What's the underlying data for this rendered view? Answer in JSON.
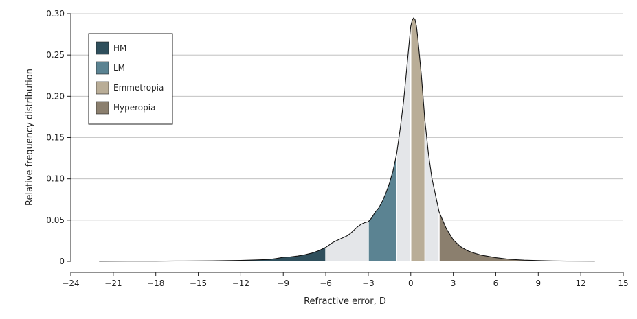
{
  "chart_data": {
    "type": "area",
    "xlabel": "Refractive error, D",
    "ylabel": "Relative frequency distribution",
    "xlim": [
      -24,
      15
    ],
    "ylim": [
      0,
      0.3
    ],
    "x_ticks": [
      -24,
      -21,
      -18,
      -15,
      -12,
      -9,
      -6,
      -3,
      0,
      3,
      6,
      9,
      12,
      15
    ],
    "y_ticks": [
      0,
      0.05,
      0.1,
      0.15,
      0.2,
      0.25,
      0.3
    ],
    "x_tick_labels": [
      "−24",
      "−21",
      "−18",
      "−15",
      "−12",
      "−9",
      "−6",
      "−3",
      "0",
      "3",
      "6",
      "9",
      "12",
      "15"
    ],
    "y_tick_labels": [
      "0",
      "0.05",
      "0.10",
      "0.15",
      "0.20",
      "0.25",
      "0.30"
    ],
    "grid": true,
    "legend_position": "top-left",
    "x": [
      -22,
      -20,
      -18,
      -16,
      -14,
      -12,
      -11,
      -10,
      -9.5,
      -9,
      -8.5,
      -8,
      -7.5,
      -7,
      -6.5,
      -6,
      -5.75,
      -5.5,
      -5.25,
      -5,
      -4.75,
      -4.5,
      -4.25,
      -4,
      -3.75,
      -3.5,
      -3.25,
      -3,
      -2.75,
      -2.5,
      -2.25,
      -2,
      -1.75,
      -1.5,
      -1.25,
      -1,
      -0.75,
      -0.5,
      -0.25,
      0,
      0.1,
      0.2,
      0.3,
      0.4,
      0.5,
      0.75,
      1,
      1.25,
      1.5,
      1.75,
      2,
      2.5,
      3,
      3.5,
      4,
      4.5,
      5,
      6,
      7,
      8,
      9,
      10,
      11,
      13
    ],
    "y": [
      0.0001,
      0.0002,
      0.0003,
      0.0005,
      0.0007,
      0.0012,
      0.0017,
      0.0024,
      0.0035,
      0.005,
      0.0055,
      0.0065,
      0.008,
      0.01,
      0.013,
      0.017,
      0.02,
      0.023,
      0.025,
      0.027,
      0.029,
      0.031,
      0.034,
      0.038,
      0.042,
      0.045,
      0.047,
      0.048,
      0.053,
      0.06,
      0.065,
      0.073,
      0.083,
      0.095,
      0.11,
      0.13,
      0.16,
      0.195,
      0.24,
      0.285,
      0.292,
      0.295,
      0.293,
      0.285,
      0.27,
      0.225,
      0.17,
      0.13,
      0.1,
      0.08,
      0.06,
      0.04,
      0.026,
      0.018,
      0.013,
      0.01,
      0.0075,
      0.0045,
      0.0025,
      0.0015,
      0.001,
      0.0006,
      0.0004,
      0.0002
    ],
    "regions": [
      {
        "name": "HM",
        "from": -22,
        "to": -6,
        "color": "#2f4f5c"
      },
      {
        "name": "",
        "from": -6,
        "to": -3,
        "color": "#e4e6e9"
      },
      {
        "name": "LM",
        "from": -3,
        "to": -1,
        "color": "#5b8392"
      },
      {
        "name": "",
        "from": -1,
        "to": 0,
        "color": "#e4e6e9"
      },
      {
        "name": "Emmetropia",
        "from": 0,
        "to": 1,
        "color": "#b9ad97"
      },
      {
        "name": "",
        "from": 1,
        "to": 2,
        "color": "#e4e6e9"
      },
      {
        "name": "Hyperopia",
        "from": 2,
        "to": 13,
        "color": "#8b7f6e"
      }
    ],
    "legend": [
      {
        "label": "HM",
        "color": "#2f4f5c"
      },
      {
        "label": "LM",
        "color": "#5b8392"
      },
      {
        "label": "Emmetropia",
        "color": "#b9ad97"
      },
      {
        "label": "Hyperopia",
        "color": "#8b7f6e"
      }
    ]
  }
}
